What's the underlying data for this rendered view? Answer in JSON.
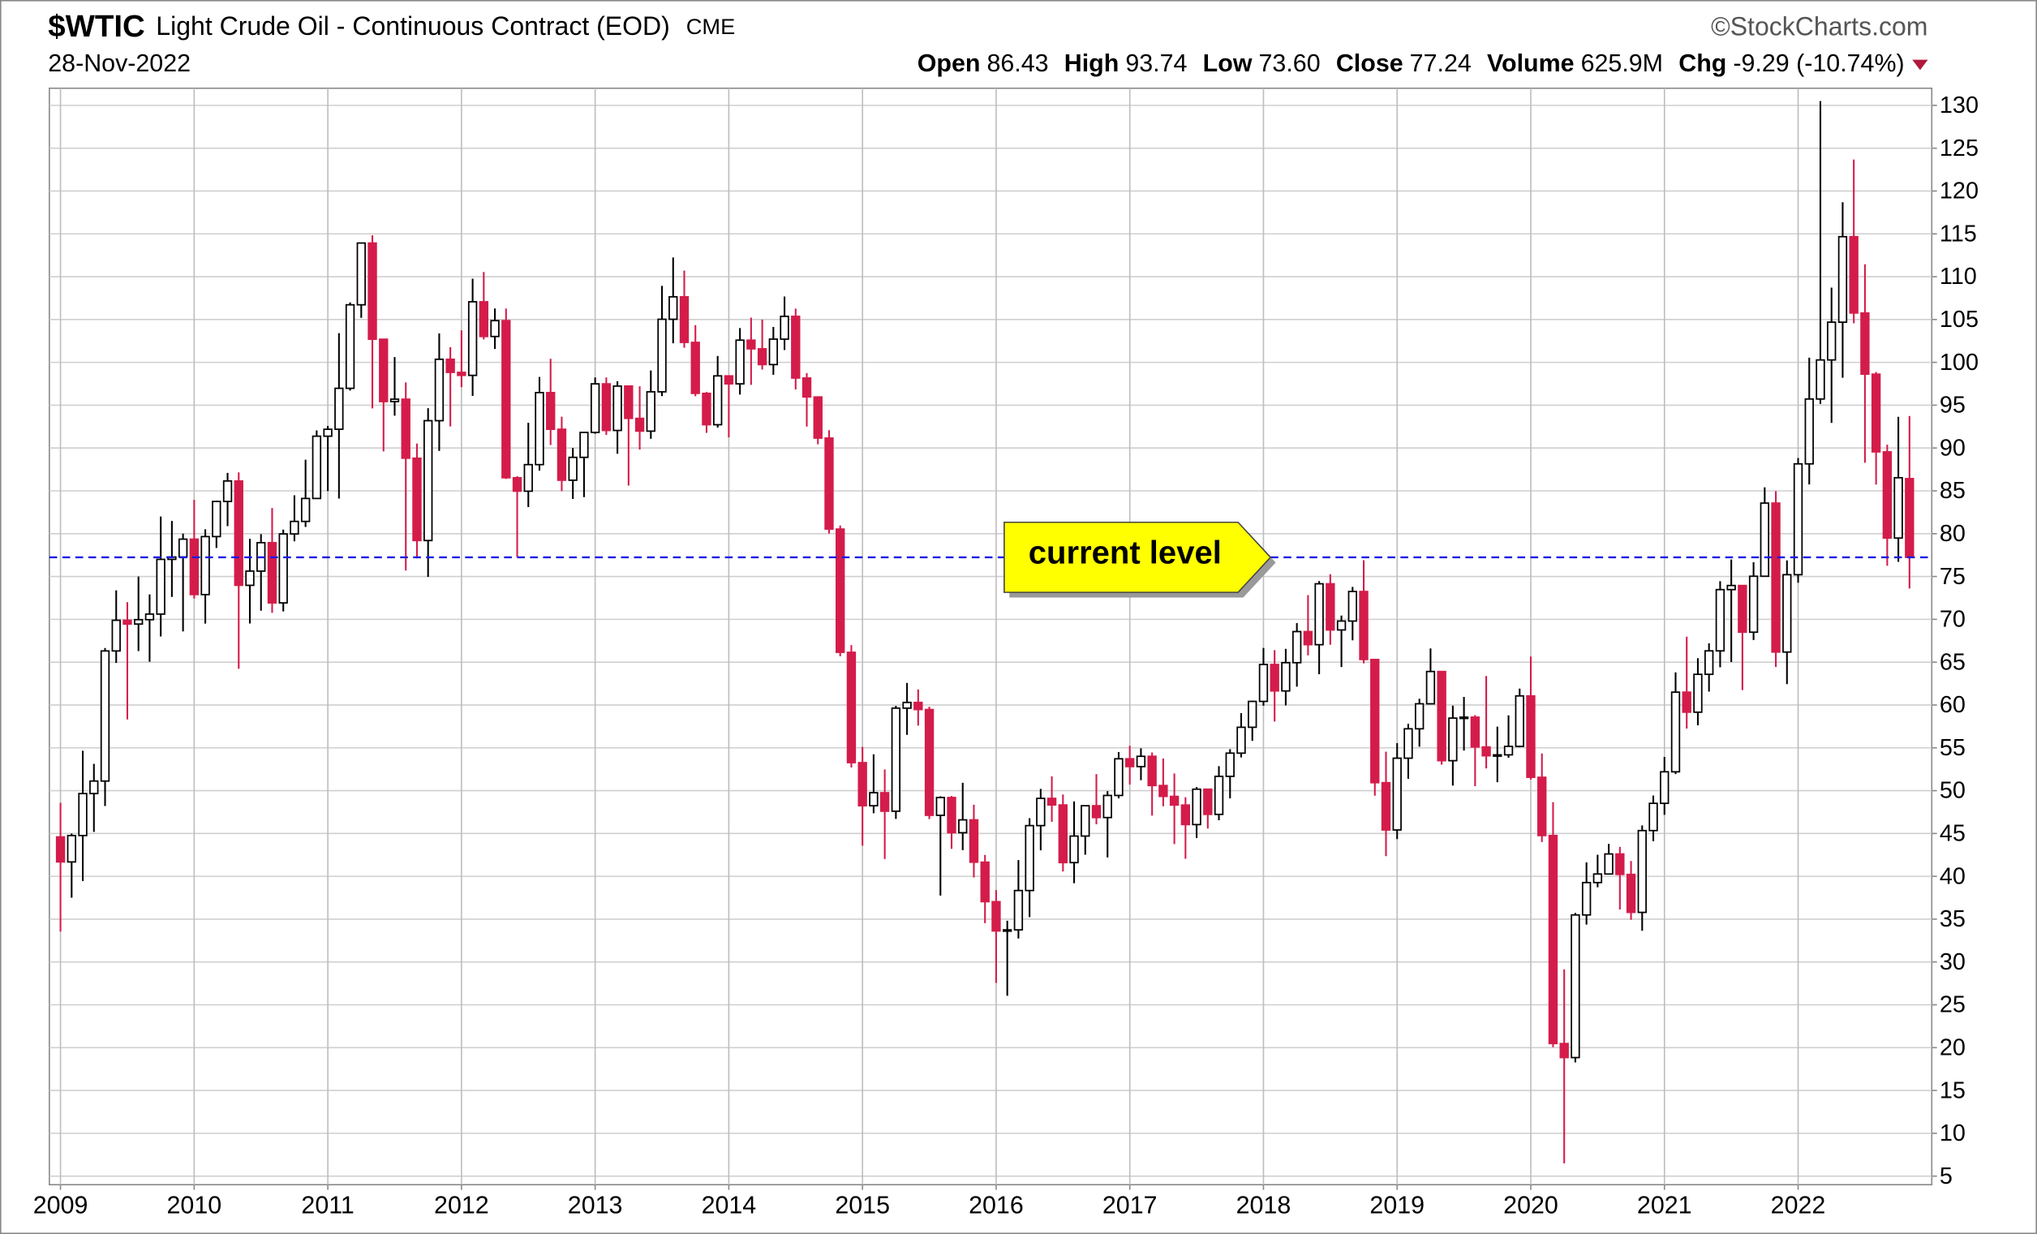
{
  "chart_data": {
    "type": "candlestick",
    "title": "$WTIC",
    "subtitle": "Light Crude Oil - Continuous Contract (EOD)",
    "exchange": "CME",
    "source": "©StockCharts.com",
    "date": "28-Nov-2022",
    "stats": [
      {
        "label": "Open",
        "value": "86.43"
      },
      {
        "label": "High",
        "value": "93.74"
      },
      {
        "label": "Low",
        "value": "73.60"
      },
      {
        "label": "Close",
        "value": "77.24"
      },
      {
        "label": "Volume",
        "value": "625.9M"
      },
      {
        "label": "Chg",
        "value": "-9.29 (-10.74%)"
      }
    ],
    "x": [
      "2009-01",
      "2009-02",
      "2009-03",
      "2009-04",
      "2009-05",
      "2009-06",
      "2009-07",
      "2009-08",
      "2009-09",
      "2009-10",
      "2009-11",
      "2009-12",
      "2010-01",
      "2010-02",
      "2010-03",
      "2010-04",
      "2010-05",
      "2010-06",
      "2010-07",
      "2010-08",
      "2010-09",
      "2010-10",
      "2010-11",
      "2010-12",
      "2011-01",
      "2011-02",
      "2011-03",
      "2011-04",
      "2011-05",
      "2011-06",
      "2011-07",
      "2011-08",
      "2011-09",
      "2011-10",
      "2011-11",
      "2011-12",
      "2012-01",
      "2012-02",
      "2012-03",
      "2012-04",
      "2012-05",
      "2012-06",
      "2012-07",
      "2012-08",
      "2012-09",
      "2012-10",
      "2012-11",
      "2012-12",
      "2013-01",
      "2013-02",
      "2013-03",
      "2013-04",
      "2013-05",
      "2013-06",
      "2013-07",
      "2013-08",
      "2013-09",
      "2013-10",
      "2013-11",
      "2013-12",
      "2014-01",
      "2014-02",
      "2014-03",
      "2014-04",
      "2014-05",
      "2014-06",
      "2014-07",
      "2014-08",
      "2014-09",
      "2014-10",
      "2014-11",
      "2014-12",
      "2015-01",
      "2015-02",
      "2015-03",
      "2015-04",
      "2015-05",
      "2015-06",
      "2015-07",
      "2015-08",
      "2015-09",
      "2015-10",
      "2015-11",
      "2015-12",
      "2016-01",
      "2016-02",
      "2016-03",
      "2016-04",
      "2016-05",
      "2016-06",
      "2016-07",
      "2016-08",
      "2016-09",
      "2016-10",
      "2016-11",
      "2016-12",
      "2017-01",
      "2017-02",
      "2017-03",
      "2017-04",
      "2017-05",
      "2017-06",
      "2017-07",
      "2017-08",
      "2017-09",
      "2017-10",
      "2017-11",
      "2017-12",
      "2018-01",
      "2018-02",
      "2018-03",
      "2018-04",
      "2018-05",
      "2018-06",
      "2018-07",
      "2018-08",
      "2018-09",
      "2018-10",
      "2018-11",
      "2018-12",
      "2019-01",
      "2019-02",
      "2019-03",
      "2019-04",
      "2019-05",
      "2019-06",
      "2019-07",
      "2019-08",
      "2019-09",
      "2019-10",
      "2019-11",
      "2019-12",
      "2020-01",
      "2020-02",
      "2020-03",
      "2020-04",
      "2020-05",
      "2020-06",
      "2020-07",
      "2020-08",
      "2020-09",
      "2020-10",
      "2020-11",
      "2020-12",
      "2021-01",
      "2021-02",
      "2021-03",
      "2021-04",
      "2021-05",
      "2021-06",
      "2021-07",
      "2021-08",
      "2021-09",
      "2021-10",
      "2021-11",
      "2021-12",
      "2022-01",
      "2022-02",
      "2022-03",
      "2022-04",
      "2022-05",
      "2022-06",
      "2022-07",
      "2022-08",
      "2022-09",
      "2022-10",
      "2022-11"
    ],
    "open": [
      44.6,
      41.68,
      44.76,
      49.66,
      51.12,
      66.31,
      69.89,
      69.45,
      69.96,
      70.61,
      77.0,
      77.28,
      79.36,
      72.89,
      79.66,
      83.76,
      86.15,
      73.97,
      75.63,
      78.95,
      71.92,
      79.97,
      81.43,
      84.11,
      91.38,
      92.19,
      96.97,
      106.72,
      113.93,
      102.7,
      95.42,
      95.7,
      88.81,
      79.2,
      93.19,
      100.36,
      98.83,
      98.48,
      107.07,
      103.02,
      104.87,
      86.53,
      84.96,
      88.06,
      96.47,
      92.19,
      86.24,
      88.91,
      91.82,
      97.49,
      92.05,
      97.23,
      93.46,
      91.97,
      96.56,
      105.03,
      107.65,
      102.33,
      96.38,
      92.72,
      98.42,
      97.49,
      102.59,
      101.58,
      99.74,
      102.71,
      105.37,
      98.17,
      95.96,
      91.16,
      80.54,
      66.15,
      53.27,
      48.24,
      49.76,
      47.6,
      59.63,
      60.3,
      59.47,
      47.12,
      49.2,
      45.09,
      46.59,
      41.65,
      37.04,
      33.62,
      33.75,
      38.34,
      45.92,
      49.1,
      48.33,
      41.6,
      44.7,
      48.24,
      46.86,
      49.44,
      53.72,
      52.81,
      54.01,
      50.6,
      49.33,
      48.32,
      46.04,
      50.17,
      47.23,
      51.67,
      54.38,
      57.4,
      60.42,
      64.73,
      61.64,
      64.94,
      68.57,
      67.04,
      74.15,
      68.76,
      69.8,
      73.25,
      65.31,
      50.93,
      45.41,
      53.79,
      57.22,
      60.14,
      63.91,
      53.5,
      58.47,
      58.58,
      55.1,
      54.07,
      54.18,
      55.17,
      61.06,
      51.56,
      44.76,
      20.48,
      18.84,
      35.49,
      39.27,
      40.27,
      42.61,
      40.22,
      35.79,
      45.34,
      48.52,
      52.2,
      61.5,
      59.16,
      63.58,
      66.32,
      73.47,
      73.95,
      68.5,
      75.03,
      83.57,
      66.18,
      75.21,
      88.15,
      95.72,
      100.28,
      104.69,
      114.67,
      105.76,
      98.62,
      89.55,
      79.49,
      86.43
    ],
    "high": [
      48.58,
      45.0,
      54.66,
      53.13,
      66.65,
      73.38,
      72.0,
      75.0,
      72.91,
      82.0,
      81.48,
      80.0,
      83.95,
      80.51,
      83.85,
      87.09,
      87.15,
      79.4,
      79.95,
      83.0,
      80.48,
      84.48,
      88.63,
      92.06,
      92.58,
      103.41,
      107.0,
      113.97,
      114.83,
      102.76,
      100.62,
      97.65,
      90.52,
      94.65,
      103.37,
      101.77,
      103.74,
      109.77,
      110.55,
      106.29,
      106.29,
      86.71,
      92.94,
      98.29,
      100.42,
      93.65,
      90.0,
      91.82,
      98.24,
      98.24,
      97.8,
      97.32,
      97.21,
      99.05,
      108.93,
      112.24,
      110.71,
      104.34,
      96.54,
      100.75,
      98.43,
      104.0,
      105.22,
      104.99,
      104.13,
      107.68,
      106.27,
      98.74,
      95.96,
      92.08,
      80.95,
      66.99,
      55.11,
      54.24,
      52.48,
      59.9,
      62.58,
      61.81,
      59.8,
      49.34,
      49.38,
      50.92,
      48.36,
      42.5,
      38.39,
      34.82,
      41.9,
      46.78,
      50.21,
      51.67,
      49.55,
      48.75,
      48.3,
      51.93,
      49.95,
      54.51,
      55.24,
      54.94,
      54.45,
      53.76,
      52.0,
      49.23,
      50.43,
      50.22,
      52.86,
      54.84,
      59.05,
      60.51,
      66.66,
      66.4,
      66.55,
      69.56,
      72.83,
      74.46,
      75.27,
      70.44,
      73.79,
      76.9,
      65.33,
      54.55,
      55.55,
      57.81,
      60.73,
      66.6,
      63.93,
      59.93,
      60.94,
      58.82,
      63.38,
      57.47,
      58.79,
      61.91,
      65.65,
      54.34,
      48.66,
      29.13,
      35.73,
      41.63,
      42.52,
      43.78,
      43.43,
      41.79,
      45.94,
      49.43,
      53.93,
      63.81,
      67.98,
      65.47,
      67.2,
      74.45,
      76.98,
      74.0,
      76.67,
      85.41,
      84.97,
      76.88,
      88.84,
      100.54,
      130.5,
      108.72,
      118.69,
      123.68,
      111.45,
      98.87,
      90.39,
      93.64,
      93.74
    ],
    "low": [
      33.55,
      37.5,
      39.44,
      45.19,
      48.21,
      64.91,
      58.32,
      66.3,
      65.05,
      68.0,
      72.62,
      68.59,
      72.43,
      69.5,
      78.33,
      80.88,
      64.24,
      69.51,
      71.01,
      70.76,
      70.92,
      79.11,
      80.79,
      84.09,
      84.98,
      84.1,
      96.71,
      105.2,
      94.63,
      89.61,
      93.77,
      75.71,
      77.11,
      74.95,
      89.66,
      92.52,
      97.1,
      96.08,
      102.67,
      101.56,
      86.39,
      77.28,
      83.11,
      87.36,
      90.35,
      84.97,
      84.05,
      84.26,
      91.67,
      91.52,
      89.33,
      85.61,
      89.82,
      91.07,
      96.06,
      102.22,
      101.71,
      96.05,
      91.77,
      92.39,
      91.24,
      96.24,
      97.37,
      99.16,
      98.55,
      101.44,
      96.84,
      92.5,
      90.43,
      80.01,
      65.69,
      52.7,
      43.58,
      47.36,
      42.03,
      46.7,
      56.51,
      57.59,
      46.68,
      37.75,
      43.21,
      43.05,
      39.87,
      34.53,
      27.56,
      26.05,
      32.74,
      35.24,
      43.03,
      46.36,
      40.57,
      39.19,
      42.52,
      46.08,
      42.2,
      49.1,
      50.71,
      51.22,
      47.09,
      48.18,
      43.76,
      42.05,
      44.47,
      45.58,
      46.55,
      49.1,
      53.88,
      55.82,
      59.91,
      58.07,
      59.95,
      62.14,
      65.8,
      63.59,
      67.03,
      64.43,
      67.55,
      64.86,
      49.41,
      42.36,
      44.35,
      51.39,
      55.13,
      60.07,
      53.04,
      50.6,
      54.68,
      50.52,
      52.6,
      50.99,
      53.84,
      55.06,
      51.3,
      44.0,
      20.06,
      6.5,
      18.27,
      34.36,
      38.72,
      40.21,
      36.13,
      34.92,
      33.64,
      44.1,
      47.18,
      51.93,
      57.25,
      57.63,
      61.56,
      64.4,
      65.01,
      61.74,
      67.59,
      74.96,
      64.43,
      62.43,
      74.27,
      85.74,
      95.14,
      92.93,
      98.2,
      104.56,
      88.28,
      85.73,
      76.25,
      76.71,
      73.6
    ],
    "close": [
      41.68,
      44.76,
      49.66,
      51.12,
      66.31,
      69.89,
      69.45,
      69.96,
      70.61,
      77.0,
      77.28,
      79.36,
      72.89,
      79.66,
      83.76,
      86.15,
      73.97,
      75.63,
      78.95,
      71.92,
      79.97,
      81.43,
      84.11,
      91.38,
      92.19,
      96.97,
      106.72,
      113.93,
      102.7,
      95.42,
      95.7,
      88.81,
      79.2,
      93.19,
      100.36,
      98.83,
      98.48,
      107.07,
      103.02,
      104.87,
      86.53,
      84.96,
      88.06,
      96.47,
      92.19,
      86.24,
      88.91,
      91.82,
      97.49,
      92.05,
      97.23,
      93.46,
      91.97,
      96.56,
      105.03,
      107.65,
      102.33,
      96.38,
      92.72,
      98.42,
      97.49,
      102.59,
      101.58,
      99.74,
      102.71,
      105.37,
      98.17,
      95.96,
      91.16,
      80.54,
      66.15,
      53.27,
      48.24,
      49.76,
      47.6,
      59.63,
      60.3,
      59.47,
      47.12,
      49.2,
      45.09,
      46.59,
      41.65,
      37.04,
      33.62,
      33.75,
      38.34,
      45.92,
      49.1,
      48.33,
      41.6,
      44.7,
      48.24,
      46.86,
      49.44,
      53.72,
      52.81,
      54.01,
      50.6,
      49.33,
      48.32,
      46.04,
      50.17,
      47.23,
      51.67,
      54.38,
      57.4,
      60.42,
      64.73,
      61.64,
      64.94,
      68.57,
      67.04,
      74.15,
      68.76,
      69.8,
      73.25,
      65.31,
      50.93,
      45.41,
      53.79,
      57.22,
      60.14,
      63.91,
      53.5,
      58.47,
      58.58,
      55.1,
      54.07,
      54.18,
      55.17,
      61.06,
      51.56,
      44.76,
      20.48,
      18.84,
      35.49,
      39.27,
      40.27,
      42.61,
      40.22,
      35.79,
      45.34,
      48.52,
      52.2,
      61.5,
      59.16,
      63.58,
      66.32,
      73.47,
      73.95,
      68.5,
      75.03,
      83.57,
      66.18,
      75.21,
      88.15,
      95.72,
      100.28,
      104.69,
      114.67,
      105.76,
      98.62,
      89.55,
      79.49,
      86.53,
      77.24
    ],
    "up_color": "#000000",
    "down_color": "#d41c4a",
    "xlim": [
      "2008-12",
      "2023-01"
    ],
    "xticks": [
      2009,
      2010,
      2011,
      2012,
      2013,
      2014,
      2015,
      2016,
      2017,
      2018,
      2019,
      2020,
      2021,
      2022
    ],
    "ylim": [
      4,
      132
    ],
    "yticks": [
      5,
      10,
      15,
      20,
      25,
      30,
      35,
      40,
      45,
      50,
      55,
      60,
      65,
      70,
      75,
      80,
      85,
      90,
      95,
      100,
      105,
      110,
      115,
      120,
      125,
      130
    ],
    "grid": true,
    "annotation": {
      "text": "current level",
      "value": 77.24,
      "color": "#1a1ae6"
    }
  }
}
